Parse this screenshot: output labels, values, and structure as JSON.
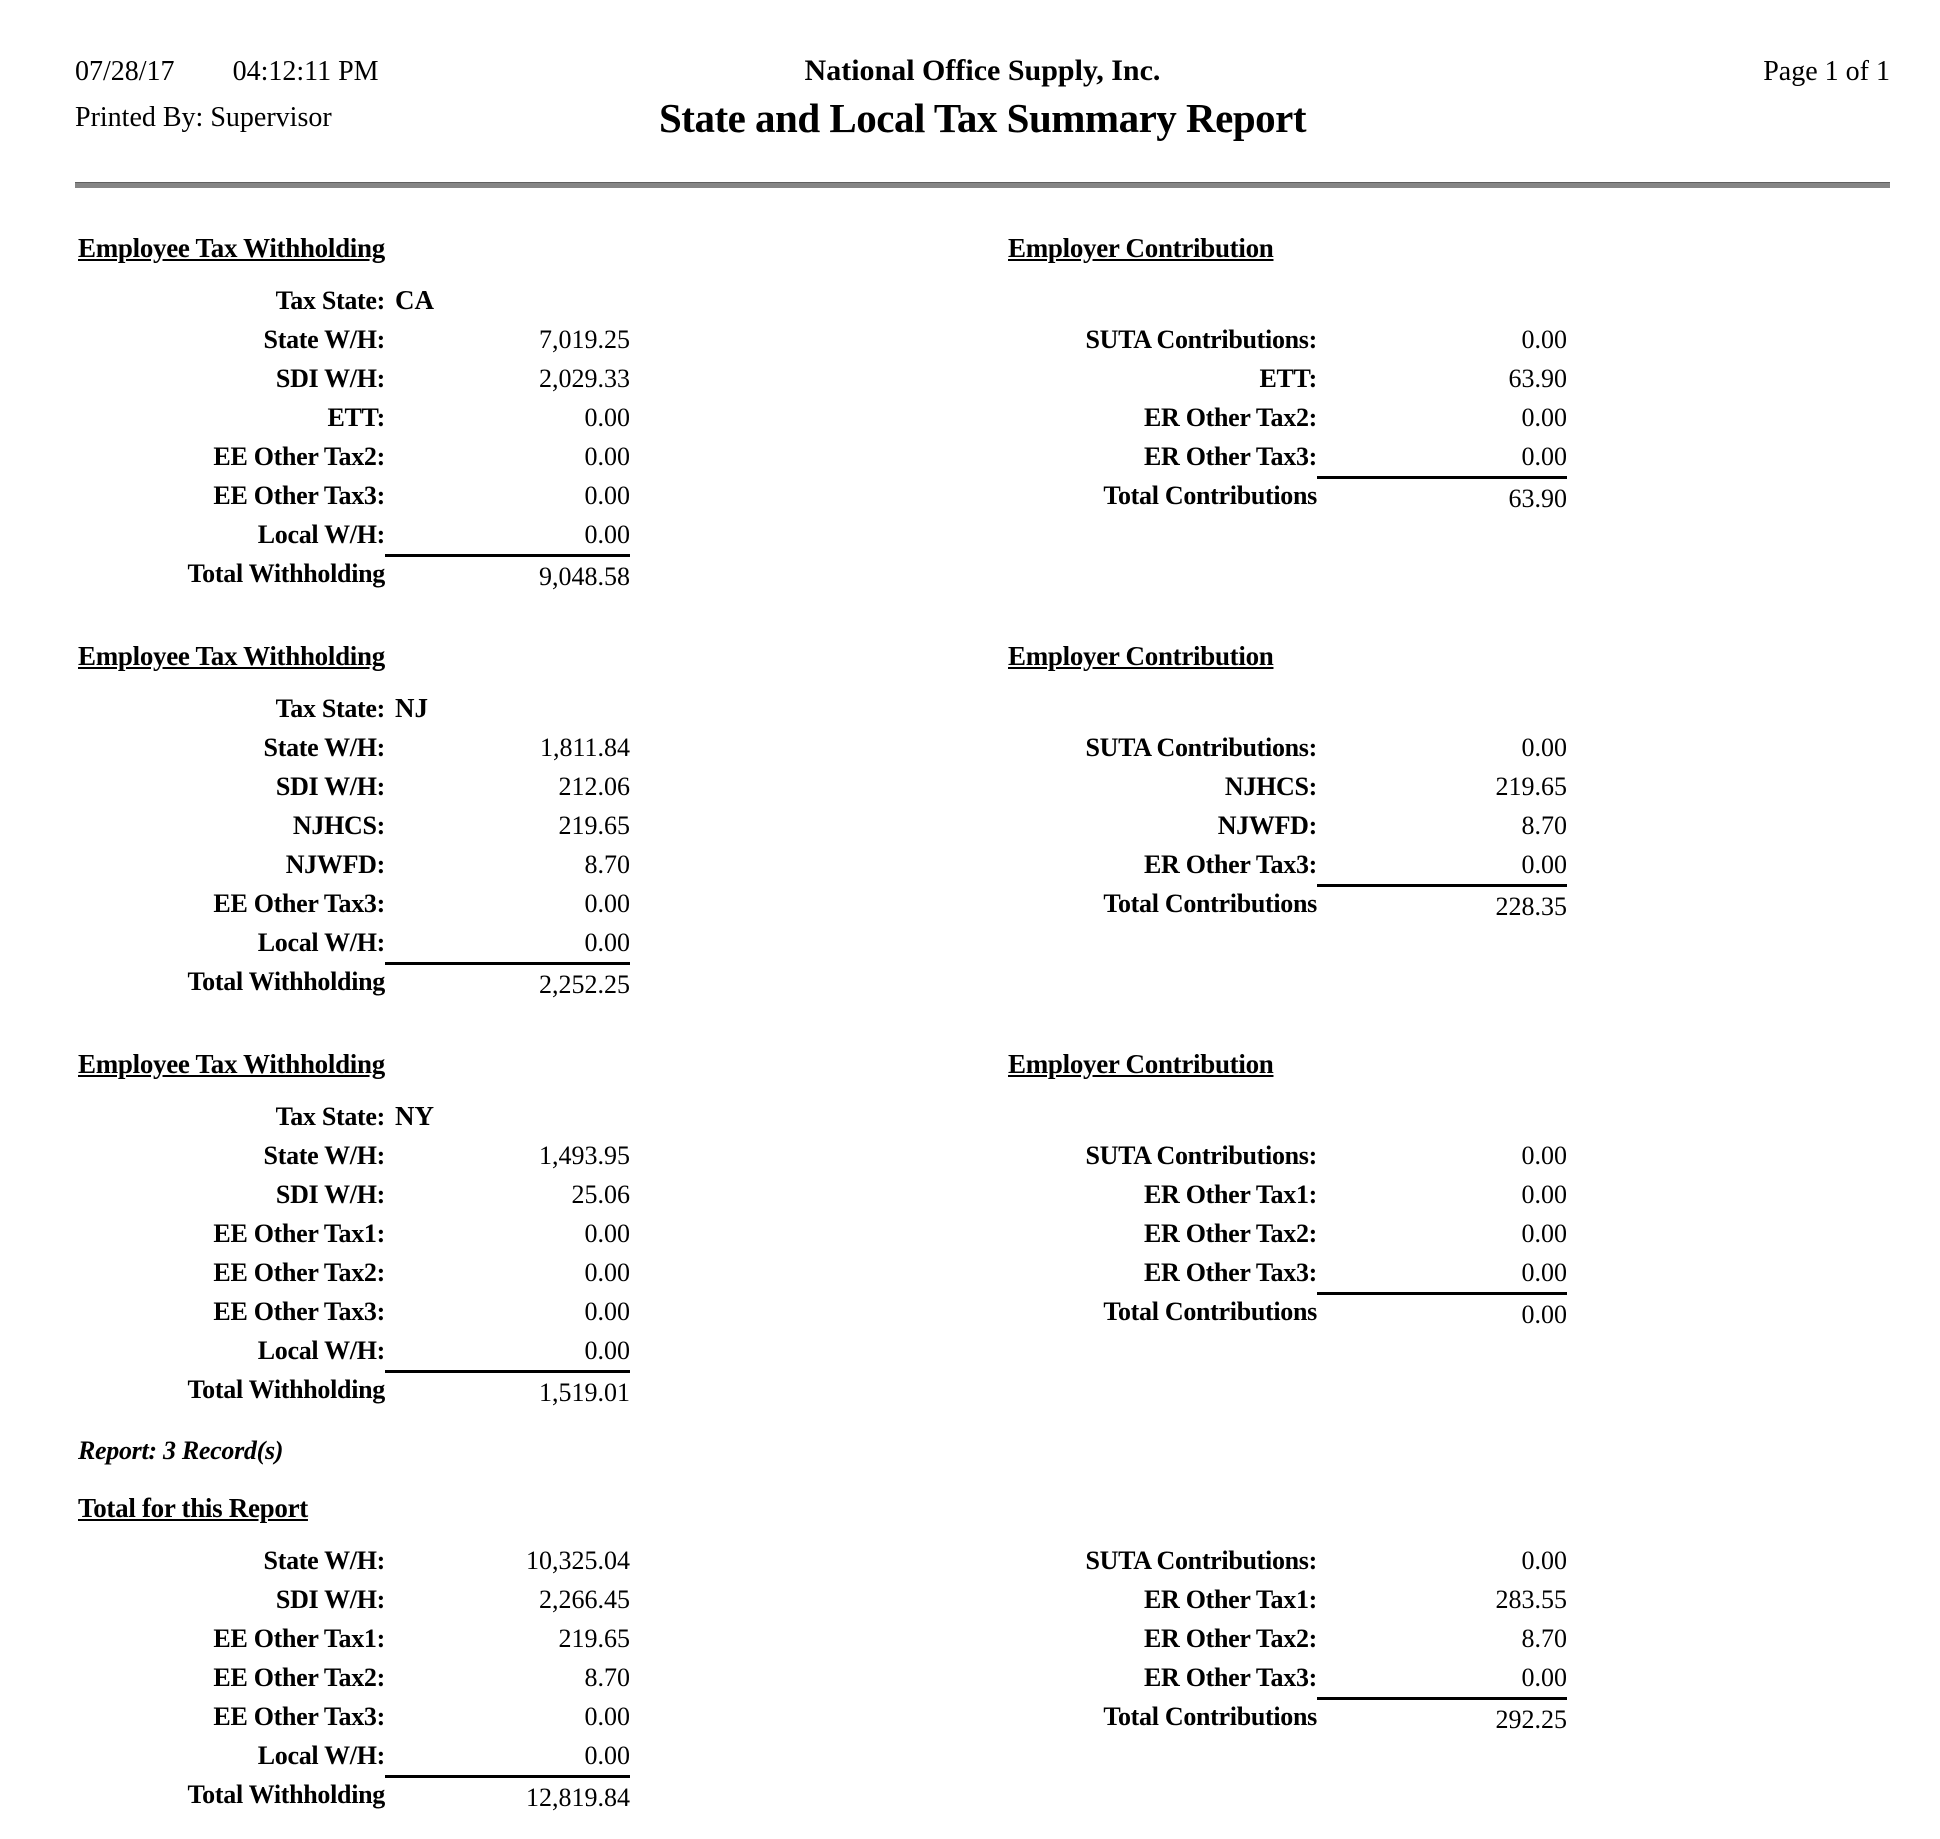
{
  "colors": {
    "rule": "#858585",
    "text": "#000000"
  },
  "header": {
    "date": "07/28/17",
    "time": "04:12:11 PM",
    "printed_by_label": "Printed By:",
    "printed_by": "Supervisor",
    "company": "National Office Supply, Inc.",
    "report_title": "State and Local Tax Summary Report",
    "page": "Page 1 of 1"
  },
  "labels": {
    "tax_state": "Tax State:"
  },
  "sections": [
    {
      "employee_heading": "Employee Tax Withholding",
      "employer_heading": "Employer Contribution",
      "tax_state": "CA",
      "employee_rows": [
        {
          "label": "State W/H:",
          "value": "7,019.25"
        },
        {
          "label": "SDI W/H:",
          "value": "2,029.33"
        },
        {
          "label": "ETT:",
          "value": "0.00"
        },
        {
          "label": "EE Other Tax2:",
          "value": "0.00"
        },
        {
          "label": "EE Other Tax3:",
          "value": "0.00"
        },
        {
          "label": "Local W/H:",
          "value": "0.00"
        }
      ],
      "employee_total_label": "Total Withholding",
      "employee_total_value": "9,048.58",
      "employer_rows": [
        {
          "label": "SUTA Contributions:",
          "value": "0.00"
        },
        {
          "label": "ETT:",
          "value": "63.90"
        },
        {
          "label": "ER Other Tax2:",
          "value": "0.00"
        },
        {
          "label": "ER Other Tax3:",
          "value": "0.00"
        }
      ],
      "employer_total_label": "Total Contributions",
      "employer_total_value": "63.90"
    },
    {
      "employee_heading": "Employee Tax Withholding",
      "employer_heading": "Employer Contribution",
      "tax_state": "NJ",
      "employee_rows": [
        {
          "label": "State W/H:",
          "value": "1,811.84"
        },
        {
          "label": "SDI W/H:",
          "value": "212.06"
        },
        {
          "label": "NJHCS:",
          "value": "219.65"
        },
        {
          "label": "NJWFD:",
          "value": "8.70"
        },
        {
          "label": "EE Other Tax3:",
          "value": "0.00"
        },
        {
          "label": "Local W/H:",
          "value": "0.00"
        }
      ],
      "employee_total_label": "Total Withholding",
      "employee_total_value": "2,252.25",
      "employer_rows": [
        {
          "label": "SUTA Contributions:",
          "value": "0.00"
        },
        {
          "label": "NJHCS:",
          "value": "219.65"
        },
        {
          "label": "NJWFD:",
          "value": "8.70"
        },
        {
          "label": "ER Other Tax3:",
          "value": "0.00"
        }
      ],
      "employer_total_label": "Total Contributions",
      "employer_total_value": "228.35"
    },
    {
      "employee_heading": "Employee Tax Withholding",
      "employer_heading": "Employer Contribution",
      "tax_state": "NY",
      "employee_rows": [
        {
          "label": "State W/H:",
          "value": "1,493.95"
        },
        {
          "label": "SDI W/H:",
          "value": "25.06"
        },
        {
          "label": "EE Other Tax1:",
          "value": "0.00"
        },
        {
          "label": "EE Other Tax2:",
          "value": "0.00"
        },
        {
          "label": "EE Other Tax3:",
          "value": "0.00"
        },
        {
          "label": "Local W/H:",
          "value": "0.00"
        }
      ],
      "employee_total_label": "Total Withholding",
      "employee_total_value": "1,519.01",
      "employer_rows": [
        {
          "label": "SUTA Contributions:",
          "value": "0.00"
        },
        {
          "label": "ER Other Tax1:",
          "value": "0.00"
        },
        {
          "label": "ER Other Tax2:",
          "value": "0.00"
        },
        {
          "label": "ER Other Tax3:",
          "value": "0.00"
        }
      ],
      "employer_total_label": "Total Contributions",
      "employer_total_value": "0.00"
    }
  ],
  "report_note": "Report: 3 Record(s)",
  "totals": {
    "heading": "Total for this Report",
    "employee_rows": [
      {
        "label": "State W/H:",
        "value": "10,325.04"
      },
      {
        "label": "SDI W/H:",
        "value": "2,266.45"
      },
      {
        "label": "EE Other Tax1:",
        "value": "219.65"
      },
      {
        "label": "EE Other Tax2:",
        "value": "8.70"
      },
      {
        "label": "EE Other Tax3:",
        "value": "0.00"
      },
      {
        "label": "Local W/H:",
        "value": "0.00"
      }
    ],
    "employee_total_label": "Total Withholding",
    "employee_total_value": "12,819.84",
    "employer_rows": [
      {
        "label": "SUTA Contributions:",
        "value": "0.00"
      },
      {
        "label": "ER Other Tax1:",
        "value": "283.55"
      },
      {
        "label": "ER Other Tax2:",
        "value": "8.70"
      },
      {
        "label": "ER Other Tax3:",
        "value": "0.00"
      }
    ],
    "employer_total_label": "Total Contributions",
    "employer_total_value": "292.25"
  }
}
